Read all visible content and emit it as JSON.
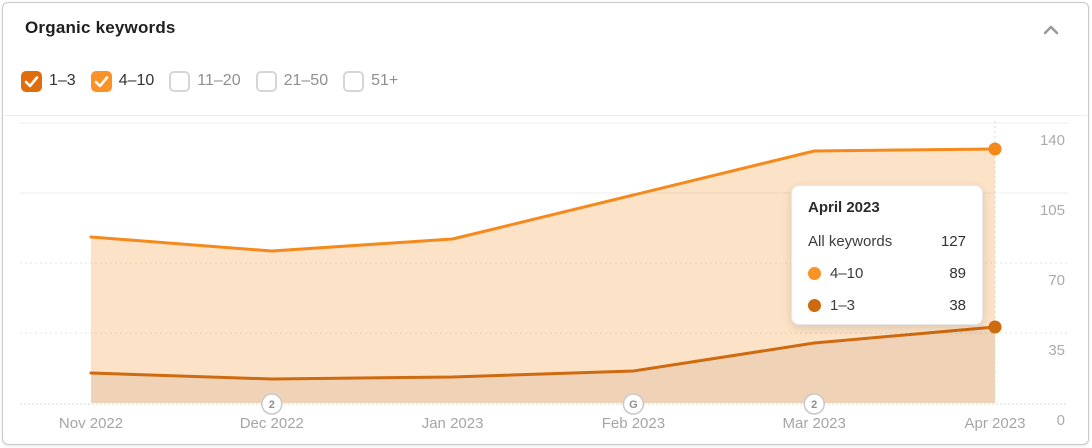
{
  "card": {
    "title": "Organic keywords"
  },
  "icons": {
    "collapse": "chevron-up"
  },
  "filters": [
    {
      "label": "1–3",
      "checked": true,
      "color": "#e06c0d"
    },
    {
      "label": "4–10",
      "checked": true,
      "color": "#fc9226"
    },
    {
      "label": "11–20",
      "checked": false,
      "color": null
    },
    {
      "label": "21–50",
      "checked": false,
      "color": null
    },
    {
      "label": "51+",
      "checked": false,
      "color": null
    }
  ],
  "chart_data": {
    "type": "area",
    "stacked": true,
    "title": "Organic keywords",
    "xlabel": "",
    "ylabel": "",
    "categories": [
      "Nov 2022",
      "Dec 2022",
      "Jan 2023",
      "Feb 2023",
      "Mar 2023",
      "Apr 2023"
    ],
    "series": [
      {
        "name": "1–3",
        "values": [
          15,
          12,
          13,
          16,
          30,
          38
        ],
        "line_color": "#ce6a10",
        "fill_color": "rgba(205,106,16,0.30)"
      },
      {
        "name": "4–10",
        "values": [
          68,
          64,
          69,
          88,
          96,
          89
        ],
        "line_color": "#f5891c",
        "fill_color": "rgba(242,138,26,0.25)"
      }
    ],
    "totals": [
      83,
      76,
      82,
      104,
      126,
      127
    ],
    "ylim": [
      0,
      140
    ],
    "yticks": [
      0,
      35,
      70,
      105,
      140
    ],
    "grid": true,
    "legend_position": "none",
    "markers": [
      {
        "category": "Dec 2022",
        "label": "2"
      },
      {
        "category": "Feb 2023",
        "label": "G"
      },
      {
        "category": "Mar 2023",
        "label": "2"
      }
    ],
    "hover_category": "Apr 2023"
  },
  "tooltip": {
    "title": "April 2023",
    "rows": [
      {
        "label": "All keywords",
        "value": "127",
        "dot_color": null
      },
      {
        "label": "4–10",
        "value": "89",
        "dot_color": "#fb9226"
      },
      {
        "label": "1–3",
        "value": "38",
        "dot_color": "#cd6a10"
      }
    ]
  }
}
